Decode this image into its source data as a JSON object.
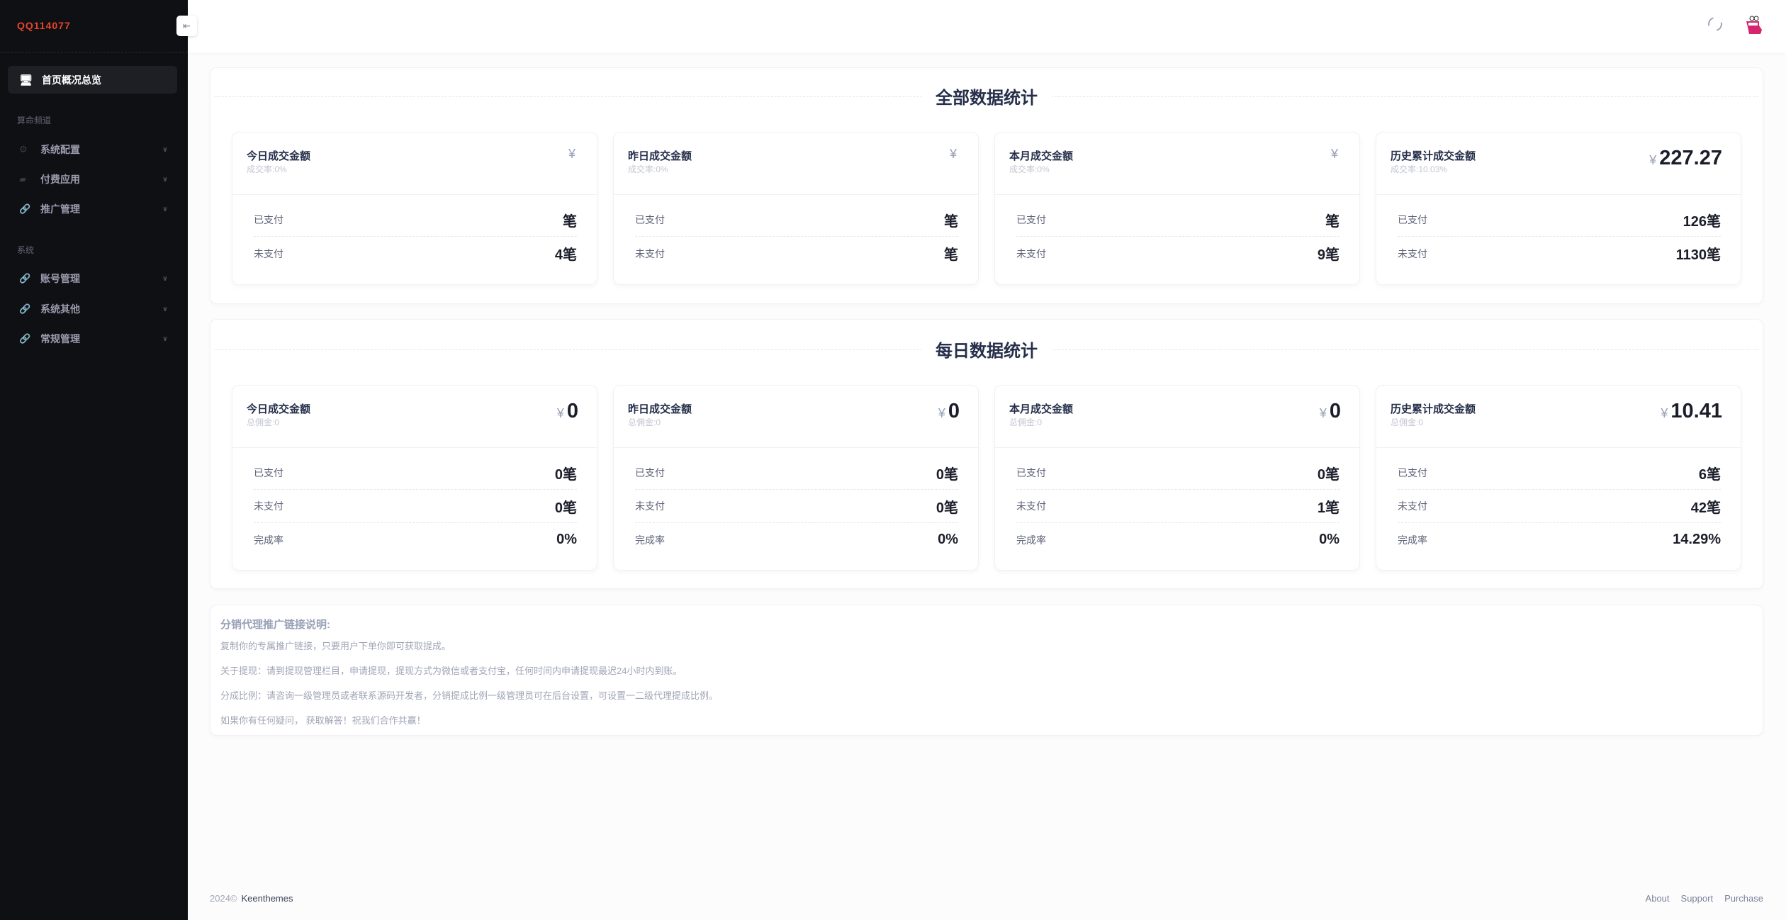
{
  "sidebar": {
    "logo": "QQ114077",
    "active": {
      "label": "首页概况总览",
      "icon": "monitor-icon"
    },
    "sections": [
      {
        "label": "算命频道",
        "items": [
          {
            "label": "系统配置",
            "icon": "gear-icon"
          },
          {
            "label": "付费应用",
            "icon": "wallet-icon"
          },
          {
            "label": "推广管理",
            "icon": "link-icon"
          }
        ]
      },
      {
        "label": "系统",
        "items": [
          {
            "label": "账号管理",
            "icon": "link-icon"
          },
          {
            "label": "系统其他",
            "icon": "link-icon"
          },
          {
            "label": "常规管理",
            "icon": "link-icon"
          }
        ]
      }
    ]
  },
  "header": {
    "collapse_icon": "arrow-left-icon",
    "refresh_icon": "refresh-icon",
    "avatar": "avatar"
  },
  "overall": {
    "title": "全部数据统计",
    "cards": [
      {
        "title": "今日成交金额",
        "sub": "成交率:0%",
        "currency": "¥",
        "amount": "",
        "rows": [
          {
            "label": "已支付",
            "value": "笔"
          },
          {
            "label": "未支付",
            "value": "4笔"
          }
        ]
      },
      {
        "title": "昨日成交金额",
        "sub": "成交率:0%",
        "currency": "¥",
        "amount": "",
        "rows": [
          {
            "label": "已支付",
            "value": "笔"
          },
          {
            "label": "未支付",
            "value": "笔"
          }
        ]
      },
      {
        "title": "本月成交金额",
        "sub": "成交率:0%",
        "currency": "¥",
        "amount": "",
        "rows": [
          {
            "label": "已支付",
            "value": "笔"
          },
          {
            "label": "未支付",
            "value": "9笔"
          }
        ]
      },
      {
        "title": "历史累计成交金额",
        "sub": "成交率:10.03%",
        "currency": "¥",
        "amount": "227.27",
        "rows": [
          {
            "label": "已支付",
            "value": "126笔"
          },
          {
            "label": "未支付",
            "value": "1130笔"
          }
        ]
      }
    ]
  },
  "daily": {
    "title": "每日数据统计",
    "cards": [
      {
        "title": "今日成交金额",
        "sub": "总佣金:0",
        "currency": "¥",
        "amount": "0",
        "rows": [
          {
            "label": "已支付",
            "value": "0笔"
          },
          {
            "label": "未支付",
            "value": "0笔"
          },
          {
            "label": "完成率",
            "value": "0%"
          }
        ]
      },
      {
        "title": "昨日成交金额",
        "sub": "总佣金:0",
        "currency": "¥",
        "amount": "0",
        "rows": [
          {
            "label": "已支付",
            "value": "0笔"
          },
          {
            "label": "未支付",
            "value": "0笔"
          },
          {
            "label": "完成率",
            "value": "0%"
          }
        ]
      },
      {
        "title": "本月成交金额",
        "sub": "总佣金:0",
        "currency": "¥",
        "amount": "0",
        "rows": [
          {
            "label": "已支付",
            "value": "0笔"
          },
          {
            "label": "未支付",
            "value": "1笔"
          },
          {
            "label": "完成率",
            "value": "0%"
          }
        ]
      },
      {
        "title": "历史累计成交金额",
        "sub": "总佣金:0",
        "currency": "¥",
        "amount": "10.41",
        "rows": [
          {
            "label": "已支付",
            "value": "6笔"
          },
          {
            "label": "未支付",
            "value": "42笔"
          },
          {
            "label": "完成率",
            "value": "14.29%"
          }
        ]
      }
    ]
  },
  "notes": {
    "title": "分销代理推广链接说明:",
    "lines": [
      "复制你的专属推广链接，只要用户下单你即可获取提成。",
      "关于提现：请到提现管理栏目，申请提现，提现方式为微信或者支付宝，任何时间内申请提现最迟24小时内到账。",
      "分成比例：请咨询一级管理员或者联系源码开发者，分销提成比例一级管理员可在后台设置，可设置一二级代理提成比例。",
      "如果你有任何疑问， 获取解答！祝我们合作共赢！"
    ]
  },
  "footer": {
    "year": "2024©",
    "brand": "Keenthemes",
    "links": [
      "About",
      "Support",
      "Purchase"
    ]
  }
}
